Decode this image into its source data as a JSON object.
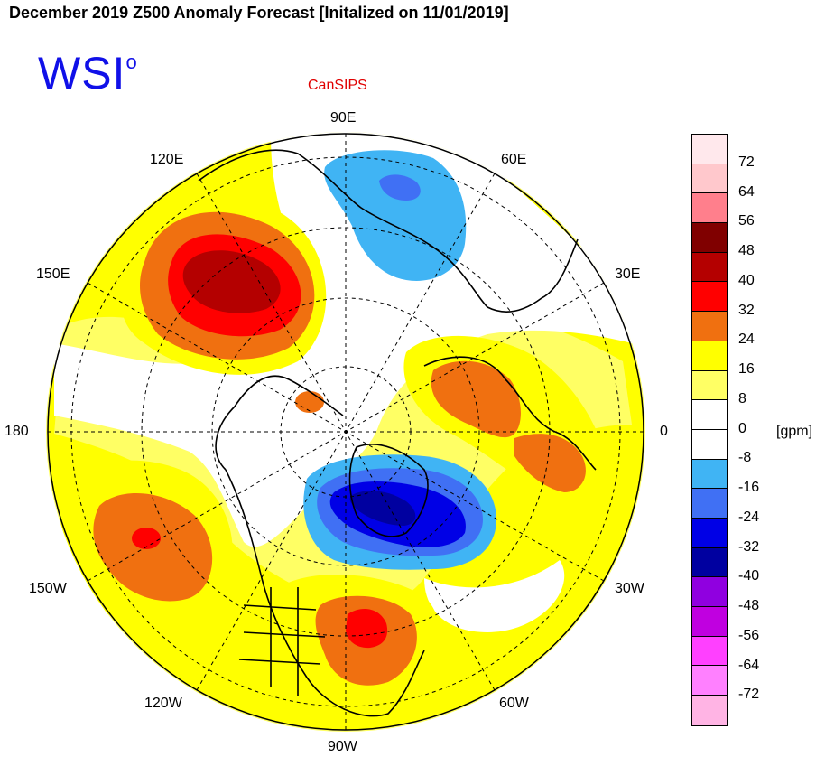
{
  "title": "December 2019 Z500 Anomaly Forecast [Initalized on 11/01/2019]",
  "logo_text": "WSI",
  "logo_mark": "o",
  "model_label": "CanSIPS",
  "longitude_labels": {
    "n": "90E",
    "nne": "60E",
    "ne": "30E",
    "e": "0",
    "se": "30W",
    "sse": "60W",
    "s": "90W",
    "ssw": "120W",
    "sw": "150W",
    "w": "180",
    "nw": "150E",
    "nnw": "120E"
  },
  "colorbar": {
    "unit": "[gpm]",
    "colors": [
      "#ffe8ec",
      "#ffc8cc",
      "#ff7f8c",
      "#800000",
      "#b40000",
      "#ff0000",
      "#f07010",
      "#ffff00",
      "#ffff64",
      "#ffffff",
      "#ffffff",
      "#40b4f4",
      "#4070f4",
      "#0000e6",
      "#0000a0",
      "#9000e0",
      "#c000e0",
      "#ff40ff",
      "#ff80ff",
      "#ffb4e4"
    ],
    "tick_labels": [
      "72",
      "64",
      "56",
      "48",
      "40",
      "32",
      "24",
      "16",
      "8",
      "0",
      "-8",
      "-16",
      "-24",
      "-32",
      "-40",
      "-48",
      "-56",
      "-64",
      "-72"
    ]
  }
}
